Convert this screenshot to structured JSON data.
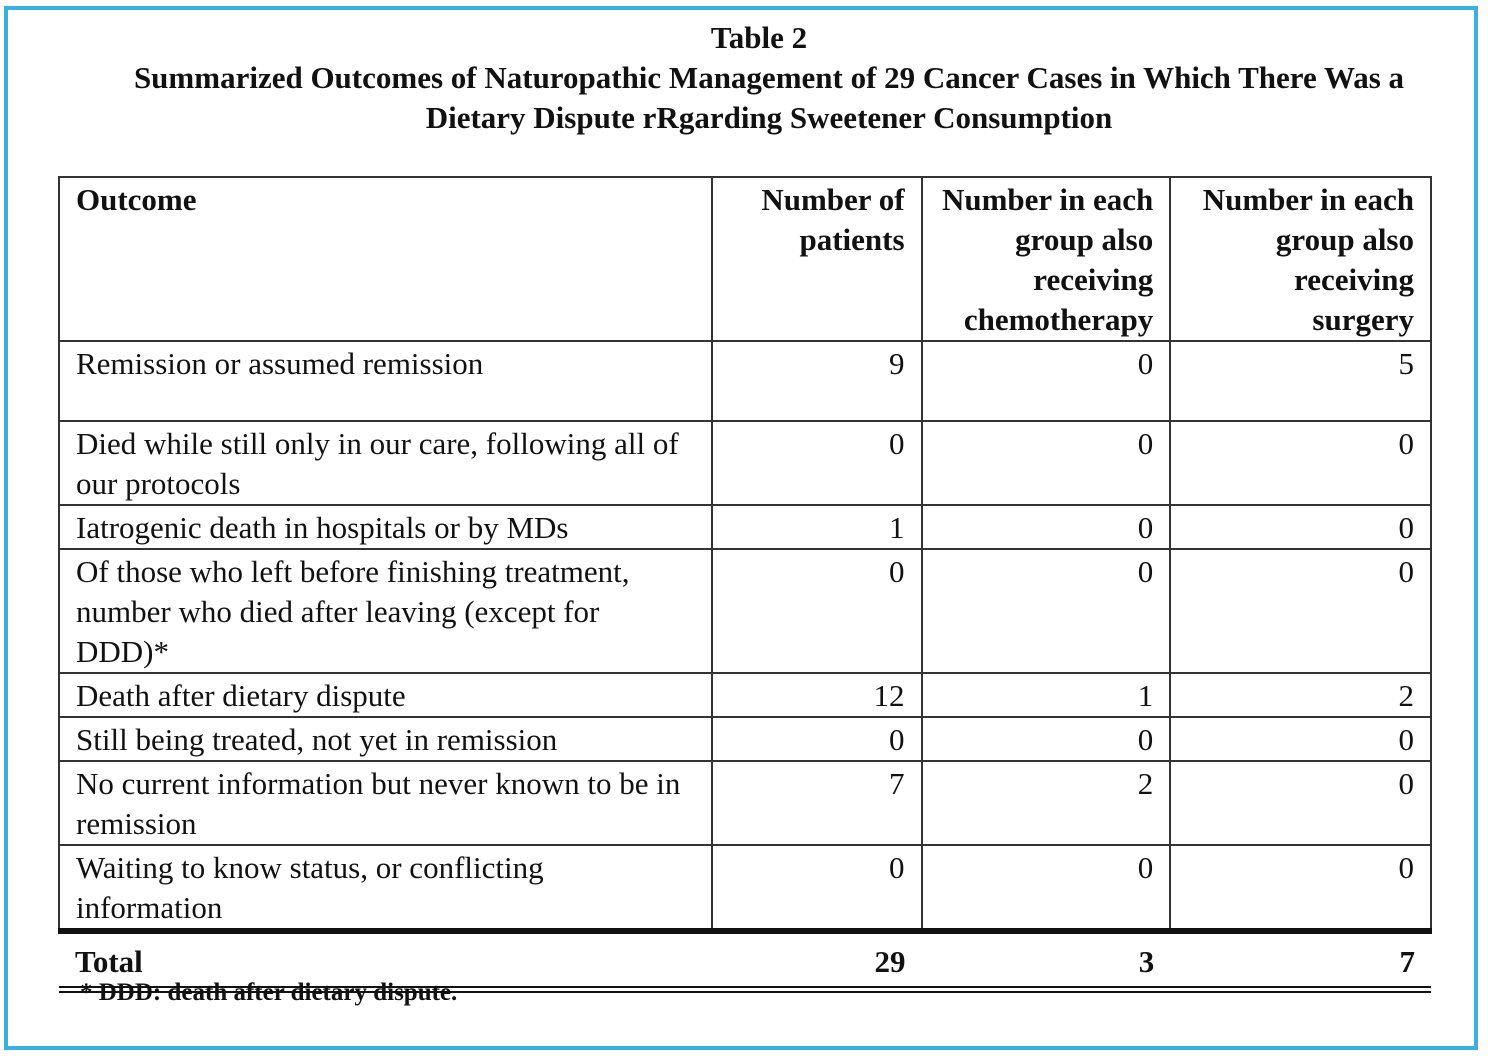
{
  "caption": {
    "label": "Table 2",
    "title": "Summarized Outcomes of Naturopathic Management of 29 Cancer Cases in Which There Was a Dietary Dispute rRgarding Sweetener Consumption"
  },
  "table": {
    "headers": {
      "outcome": "Outcome",
      "patients": "Number of patients",
      "chemo": "Number in each group also receiving chemotherapy",
      "surgery": "Number in each group also receiving surgery"
    },
    "rows": [
      {
        "outcome": "Remission or assumed remission",
        "patients": "9",
        "chemo": "0",
        "surgery": "5"
      },
      {
        "outcome": "Died while still only in our care, following all of our protocols",
        "patients": "0",
        "chemo": "0",
        "surgery": "0"
      },
      {
        "outcome": "Iatrogenic death in hospitals or by MDs",
        "patients": "1",
        "chemo": "0",
        "surgery": "0"
      },
      {
        "outcome": "Of those who left before finishing treatment, number who died after leaving (except for DDD)*",
        "patients": "0",
        "chemo": "0",
        "surgery": "0"
      },
      {
        "outcome": "Death after dietary dispute",
        "patients": "12",
        "chemo": "1",
        "surgery": "2"
      },
      {
        "outcome": "Still being treated, not yet in remission",
        "patients": "0",
        "chemo": "0",
        "surgery": "0"
      },
      {
        "outcome": "No current information but never known to be in remission",
        "patients": "7",
        "chemo": "2",
        "surgery": "0"
      },
      {
        "outcome": "Waiting to know status, or conflicting information",
        "patients": "0",
        "chemo": "0",
        "surgery": "0"
      }
    ],
    "total": {
      "outcome": "Total",
      "patients": "29",
      "chemo": "3",
      "surgery": "7"
    }
  },
  "footnote": "* DDD: death after dietary dispute."
}
